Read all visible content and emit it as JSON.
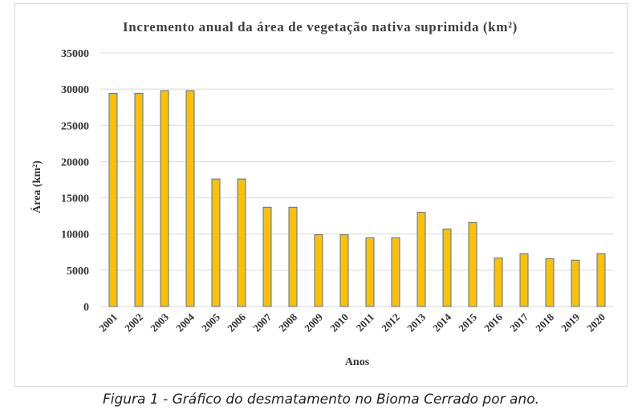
{
  "chart_data": {
    "type": "bar",
    "title": "Incremento anual da área de vegetação nativa suprimida (km²)",
    "xlabel": "Anos",
    "ylabel": "Área (km²)",
    "categories": [
      "2001",
      "2002",
      "2003",
      "2004",
      "2005",
      "2006",
      "2007",
      "2008",
      "2009",
      "2010",
      "2011",
      "2012",
      "2013",
      "2014",
      "2015",
      "2016",
      "2017",
      "2018",
      "2019",
      "2020"
    ],
    "values": [
      29400,
      29400,
      29800,
      29800,
      17600,
      17600,
      13700,
      13700,
      9900,
      9900,
      9500,
      9500,
      13000,
      10700,
      11600,
      6700,
      7300,
      6600,
      6400,
      7300
    ],
    "ylim": [
      0,
      35000
    ],
    "yticks": [
      0,
      5000,
      10000,
      15000,
      20000,
      25000,
      30000,
      35000
    ],
    "grid": true,
    "colors": {
      "bar_fill": "#FFC000",
      "bar_stroke": "#4472C4",
      "grid": "#d9d9d9"
    }
  },
  "caption": "Figura 1 - Gráfico do desmatamento no Bioma Cerrado por ano."
}
